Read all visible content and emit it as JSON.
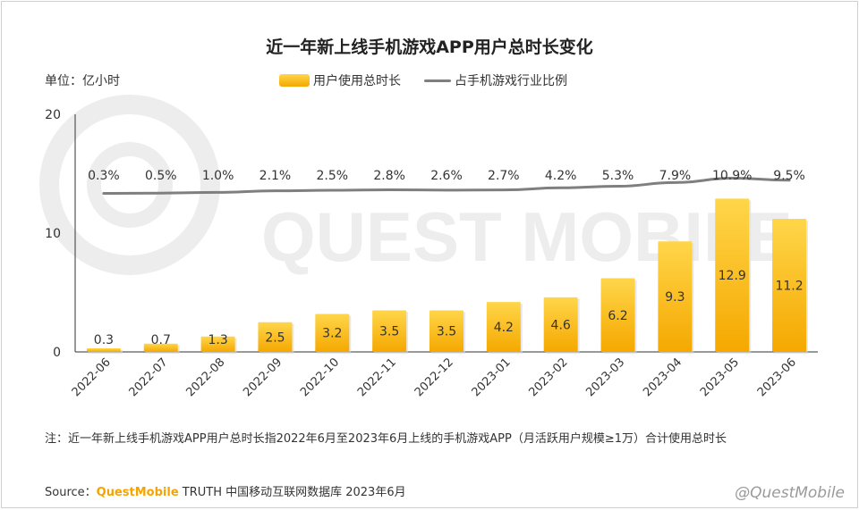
{
  "chart_data": {
    "type": "bar",
    "title": "近一年新上线手机游戏APP用户总时长变化",
    "unit_label": "单位：亿小时",
    "categories": [
      "2022-06",
      "2022-07",
      "2022-08",
      "2022-09",
      "2022-10",
      "2022-11",
      "2022-12",
      "2023-01",
      "2023-02",
      "2023-03",
      "2023-04",
      "2023-05",
      "2023-06"
    ],
    "series": [
      {
        "name": "用户使用总时长",
        "type": "bar",
        "axis": "left",
        "values": [
          0.3,
          0.7,
          1.3,
          2.5,
          3.2,
          3.5,
          3.5,
          4.2,
          4.6,
          6.2,
          9.3,
          12.9,
          11.2
        ],
        "labels": [
          "0.3",
          "0.7",
          "1.3",
          "2.5",
          "3.2",
          "3.5",
          "3.5",
          "4.2",
          "4.6",
          "6.2",
          "9.3",
          "12.9",
          "11.2"
        ]
      },
      {
        "name": "占手机游戏行业比例",
        "type": "line",
        "axis": "right",
        "values": [
          0.3,
          0.5,
          1.0,
          2.1,
          2.5,
          2.8,
          2.6,
          2.7,
          4.2,
          5.3,
          7.9,
          10.9,
          9.5
        ],
        "labels": [
          "0.3%",
          "0.5%",
          "1.0%",
          "2.1%",
          "2.5%",
          "2.8%",
          "2.6%",
          "2.7%",
          "4.2%",
          "5.3%",
          "7.9%",
          "10.9%",
          "9.5%"
        ]
      }
    ],
    "ylim": [
      0,
      20
    ],
    "yticks": [
      "0",
      "10",
      "20"
    ],
    "legend": "top-center",
    "grid": false,
    "colors": {
      "bar_top": "#ffd64a",
      "bar_bottom": "#f5a800",
      "line": "#7f7f7f",
      "axis": "#333333"
    }
  },
  "footnote": "注：近一年新上线手机游戏APP用户总时长指2022年6月至2023年6月上线的手机游戏APP（月活跃用户规模≥1万）合计使用总时长",
  "source": {
    "prefix": "Source：",
    "brand": "QuestMobile",
    "rest": " TRUTH 中国移动互联网数据库 2023年6月"
  },
  "watermark": "QUEST MOBILE",
  "footer_mark": "@QuestMobile"
}
